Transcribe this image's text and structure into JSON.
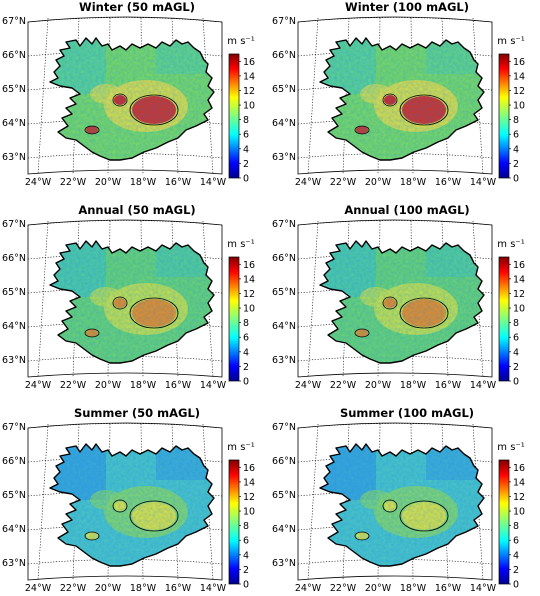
{
  "figure": {
    "panels": [
      {
        "title": "Winter (50 mAGL)",
        "season": "winter"
      },
      {
        "title": "Winter (100 mAGL)",
        "season": "winter"
      },
      {
        "title": "Annual (50 mAGL)",
        "season": "annual"
      },
      {
        "title": "Annual (100 mAGL)",
        "season": "annual"
      },
      {
        "title": "Summer (50 mAGL)",
        "season": "summer"
      },
      {
        "title": "Summer (100 mAGL)",
        "season": "summer"
      }
    ],
    "lat_labels": [
      "67°N",
      "66°N",
      "65°N",
      "64°N",
      "63°N"
    ],
    "lon_labels": [
      "24°W",
      "22°W",
      "20°W",
      "18°W",
      "16°W",
      "14°W"
    ],
    "colorbar": {
      "unit": "m s⁻¹",
      "ticks": [
        "0",
        "2",
        "4",
        "6",
        "8",
        "10",
        "12",
        "14",
        "16"
      ],
      "min": 0,
      "max": 17
    },
    "season_colors": {
      "winter": {
        "base": "#7fdc5a",
        "hot": "#d7261a",
        "cool": "#4bd0b0",
        "warm": "#f2e23a"
      },
      "annual": {
        "base": "#6fd66a",
        "hot": "#f08a1c",
        "cool": "#3ec7c4",
        "warm": "#d9e63c"
      },
      "summer": {
        "base": "#4fc7c0",
        "hot": "#e8e63a",
        "cool": "#2f8fe0",
        "warm": "#8fdc5a"
      }
    }
  }
}
